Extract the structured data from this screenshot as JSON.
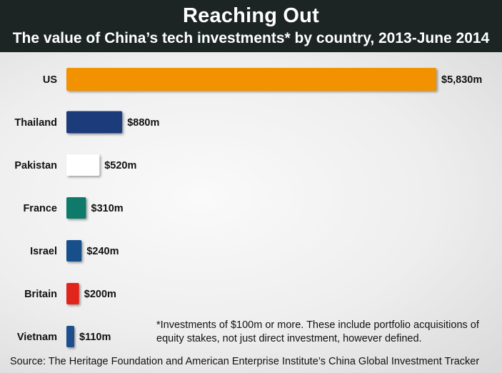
{
  "header": {
    "title": "Reaching Out",
    "subtitle": "The value of China’s tech investments* by country, 2013-June 2014"
  },
  "footnote": "*Investments of $100m or more. These include portfolio acquisitions of equity stakes, not just direct investment, however defined.",
  "source": "Source: The Heritage Foundation and American Enterprise Institute’s China Global Investment Tracker",
  "chart_data": {
    "type": "bar",
    "orientation": "horizontal",
    "title": "Reaching Out",
    "subtitle": "The value of China’s tech investments* by country, 2013-June 2014",
    "unit": "$m",
    "categories": [
      "US",
      "Thailand",
      "Pakistan",
      "France",
      "Israel",
      "Britain",
      "Vietnam"
    ],
    "values": [
      5830,
      880,
      520,
      310,
      240,
      200,
      110
    ],
    "value_labels": [
      "$5,830m",
      "$880m",
      "$520m",
      "$310m",
      "$240m",
      "$200m",
      "$110m"
    ],
    "colors": [
      "#f39200",
      "#1f3a7a",
      "#ffffff",
      "#0e7a6b",
      "#184f8a",
      "#e0281e",
      "#1e4f8c"
    ],
    "xlim": [
      0,
      5830
    ],
    "grid": false,
    "legend": "none"
  }
}
